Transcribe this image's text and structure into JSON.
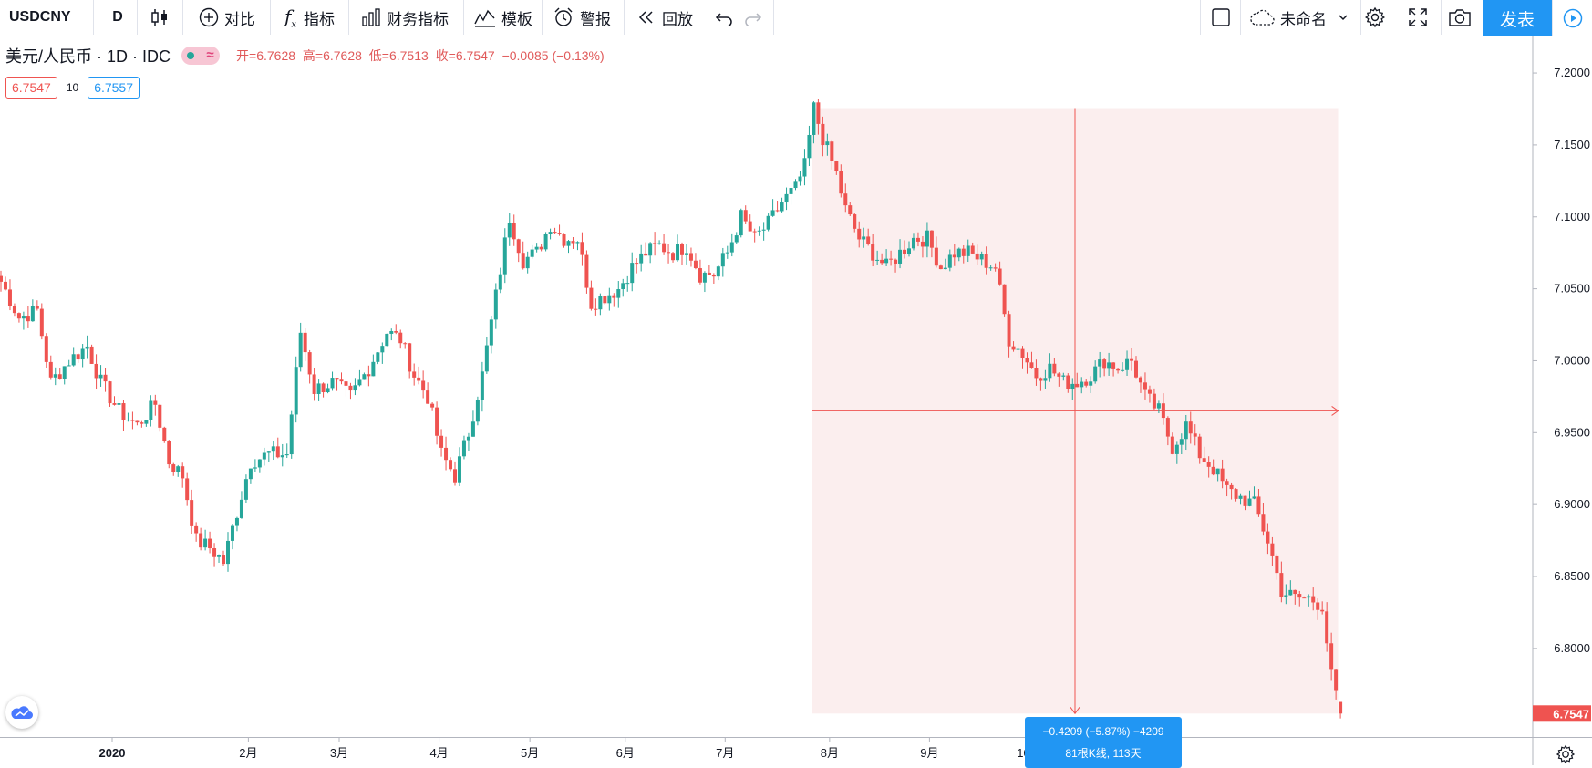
{
  "toolbar": {
    "symbol": "USDCNY",
    "interval": "D",
    "compare_label": "对比",
    "indicators_label": "指标",
    "financials_label": "财务指标",
    "templates_label": "模板",
    "alert_label": "警报",
    "replay_label": "回放",
    "layout_name": "未命名",
    "publish_label": "发表"
  },
  "legend": {
    "title": "美元/人民币 · 1D · IDC",
    "open_label": "开=6.7628",
    "high_label": "高=6.7628",
    "low_label": "低=6.7513",
    "close_label": "收=6.7547",
    "change": "−0.0085 (−0.13%)",
    "bid": "6.7547",
    "spread": "10",
    "ask": "6.7557"
  },
  "colors": {
    "up": "#26a69a",
    "down": "#ef5350",
    "measure_fill": "#fbeeee",
    "accent": "#2196f3"
  },
  "measure": {
    "line1": "−0.4209 (−5.87%) −4209",
    "line2": "81根K线, 113天"
  },
  "chart_data": {
    "type": "candlestick",
    "symbol": "USDCNY",
    "y_axis": {
      "ticks": [
        7.2,
        7.15,
        7.1,
        7.05,
        7.0,
        6.95,
        6.9,
        6.85,
        6.8
      ],
      "tick_labels": [
        "7.2000",
        "7.1500",
        "7.1000",
        "7.0500",
        "7.0000",
        "6.9500",
        "6.9000",
        "6.8500",
        "6.8000"
      ],
      "ylim": [
        6.7384,
        7.2254
      ]
    },
    "x_axis": {
      "labels": [
        "2020",
        "2月",
        "3月",
        "4月",
        "5月",
        "6月",
        "7月",
        "8月",
        "9月",
        "10月"
      ]
    },
    "last_price": "6.7547",
    "measure_range": {
      "from": 7.1756,
      "to": 6.7547
    },
    "anchors": [
      [
        0,
        7.055
      ],
      [
        4,
        7.03
      ],
      [
        8,
        7.035
      ],
      [
        11,
        6.985
      ],
      [
        15,
        7.0
      ],
      [
        19,
        7.01
      ],
      [
        22,
        6.985
      ],
      [
        26,
        6.965
      ],
      [
        30,
        6.955
      ],
      [
        34,
        6.97
      ],
      [
        37,
        6.93
      ],
      [
        40,
        6.92
      ],
      [
        43,
        6.875
      ],
      [
        46,
        6.87
      ],
      [
        49,
        6.86
      ],
      [
        52,
        6.895
      ],
      [
        55,
        6.93
      ],
      [
        59,
        6.935
      ],
      [
        63,
        6.935
      ],
      [
        66,
        7.02
      ],
      [
        69,
        6.98
      ],
      [
        73,
        6.985
      ],
      [
        77,
        6.975
      ],
      [
        81,
        6.995
      ],
      [
        85,
        7.02
      ],
      [
        88,
        7.015
      ],
      [
        91,
        6.99
      ],
      [
        94,
        6.975
      ],
      [
        97,
        6.935
      ],
      [
        100,
        6.92
      ],
      [
        103,
        6.95
      ],
      [
        106,
        6.99
      ],
      [
        109,
        7.045
      ],
      [
        112,
        7.1
      ],
      [
        115,
        7.07
      ],
      [
        118,
        7.075
      ],
      [
        121,
        7.095
      ],
      [
        124,
        7.085
      ],
      [
        127,
        7.085
      ],
      [
        130,
        7.04
      ],
      [
        133,
        7.045
      ],
      [
        136,
        7.05
      ],
      [
        139,
        7.065
      ],
      [
        142,
        7.075
      ],
      [
        145,
        7.08
      ],
      [
        148,
        7.075
      ],
      [
        151,
        7.08
      ],
      [
        154,
        7.06
      ],
      [
        157,
        7.06
      ],
      [
        160,
        7.075
      ],
      [
        163,
        7.1
      ],
      [
        166,
        7.085
      ],
      [
        169,
        7.095
      ],
      [
        172,
        7.11
      ],
      [
        175,
        7.12
      ],
      [
        177,
        7.135
      ],
      [
        179,
        7.1756
      ],
      [
        181,
        7.155
      ],
      [
        184,
        7.13
      ],
      [
        186,
        7.105
      ],
      [
        189,
        7.085
      ],
      [
        192,
        7.075
      ],
      [
        195,
        7.065
      ],
      [
        198,
        7.075
      ],
      [
        201,
        7.085
      ],
      [
        204,
        7.085
      ],
      [
        207,
        7.065
      ],
      [
        210,
        7.075
      ],
      [
        213,
        7.075
      ],
      [
        216,
        7.07
      ],
      [
        219,
        7.065
      ],
      [
        222,
        7.015
      ],
      [
        225,
        7.005
      ],
      [
        228,
        6.99
      ],
      [
        231,
        6.995
      ],
      [
        234,
        6.985
      ],
      [
        237,
        6.985
      ],
      [
        240,
        6.99
      ],
      [
        243,
        7.0
      ],
      [
        246,
        6.995
      ],
      [
        249,
        7.0
      ],
      [
        252,
        6.975
      ],
      [
        255,
        6.965
      ],
      [
        258,
        6.94
      ],
      [
        261,
        6.955
      ],
      [
        264,
        6.935
      ],
      [
        267,
        6.925
      ],
      [
        270,
        6.91
      ],
      [
        273,
        6.905
      ],
      [
        276,
        6.9
      ],
      [
        279,
        6.875
      ],
      [
        282,
        6.84
      ],
      [
        285,
        6.835
      ],
      [
        288,
        6.835
      ],
      [
        291,
        6.83
      ],
      [
        293,
        6.78
      ],
      [
        295,
        6.7547
      ]
    ]
  }
}
